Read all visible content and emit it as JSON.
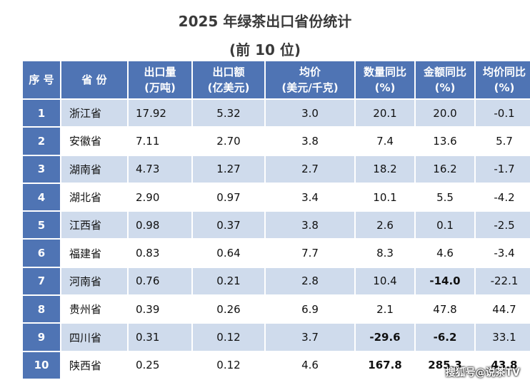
{
  "title": "2025 年绿茶出口省份统计",
  "subtitle": "(前 10 位)",
  "headers": [
    {
      "l1": "序 号",
      "l2": ""
    },
    {
      "l1": "省 份",
      "l2": ""
    },
    {
      "l1": "出口量",
      "l2": "(万吨)"
    },
    {
      "l1": "出口额",
      "l2": "(亿美元)"
    },
    {
      "l1": "均价",
      "l2": "(美元/千克)"
    },
    {
      "l1": "数量同比",
      "l2": "(%)"
    },
    {
      "l1": "金额同比",
      "l2": "(%)"
    },
    {
      "l1": "均价同比",
      "l2": "(%)"
    }
  ],
  "rows": [
    [
      "1",
      "浙江省",
      "17.92",
      "5.32",
      "3.0",
      "20.1",
      "20.0",
      "-0.1"
    ],
    [
      "2",
      "安徽省",
      "7.11",
      "2.70",
      "3.8",
      "7.4",
      "13.6",
      "5.7"
    ],
    [
      "3",
      "湖南省",
      "4.73",
      "1.27",
      "2.7",
      "18.2",
      "16.2",
      "-1.7"
    ],
    [
      "4",
      "湖北省",
      "2.90",
      "0.97",
      "3.4",
      "10.1",
      "5.5",
      "-4.2"
    ],
    [
      "5",
      "江西省",
      "0.98",
      "0.37",
      "3.8",
      "2.6",
      "0.1",
      "-2.5"
    ],
    [
      "6",
      "福建省",
      "0.83",
      "0.64",
      "7.7",
      "8.3",
      "4.6",
      "-3.4"
    ],
    [
      "7",
      "河南省",
      "0.76",
      "0.21",
      "2.8",
      "10.4",
      "-14.0",
      "-22.1"
    ],
    [
      "8",
      "贵州省",
      "0.39",
      "0.26",
      "6.9",
      "2.1",
      "47.8",
      "44.7"
    ],
    [
      "9",
      "四川省",
      "0.31",
      "0.12",
      "3.7",
      "-29.6",
      "-6.2",
      "33.1"
    ],
    [
      "10",
      "陕西省",
      "0.25",
      "0.12",
      "4.6",
      "167.8",
      "285.3",
      "43.8"
    ]
  ],
  "highlights": {
    "negative_color": "#1e9b4a",
    "positive_color": "#e0202a",
    "header_color": "#4f74b4",
    "stripe_color": "#cfdbec"
  },
  "watermark": "搜狐号@说茶TV"
}
